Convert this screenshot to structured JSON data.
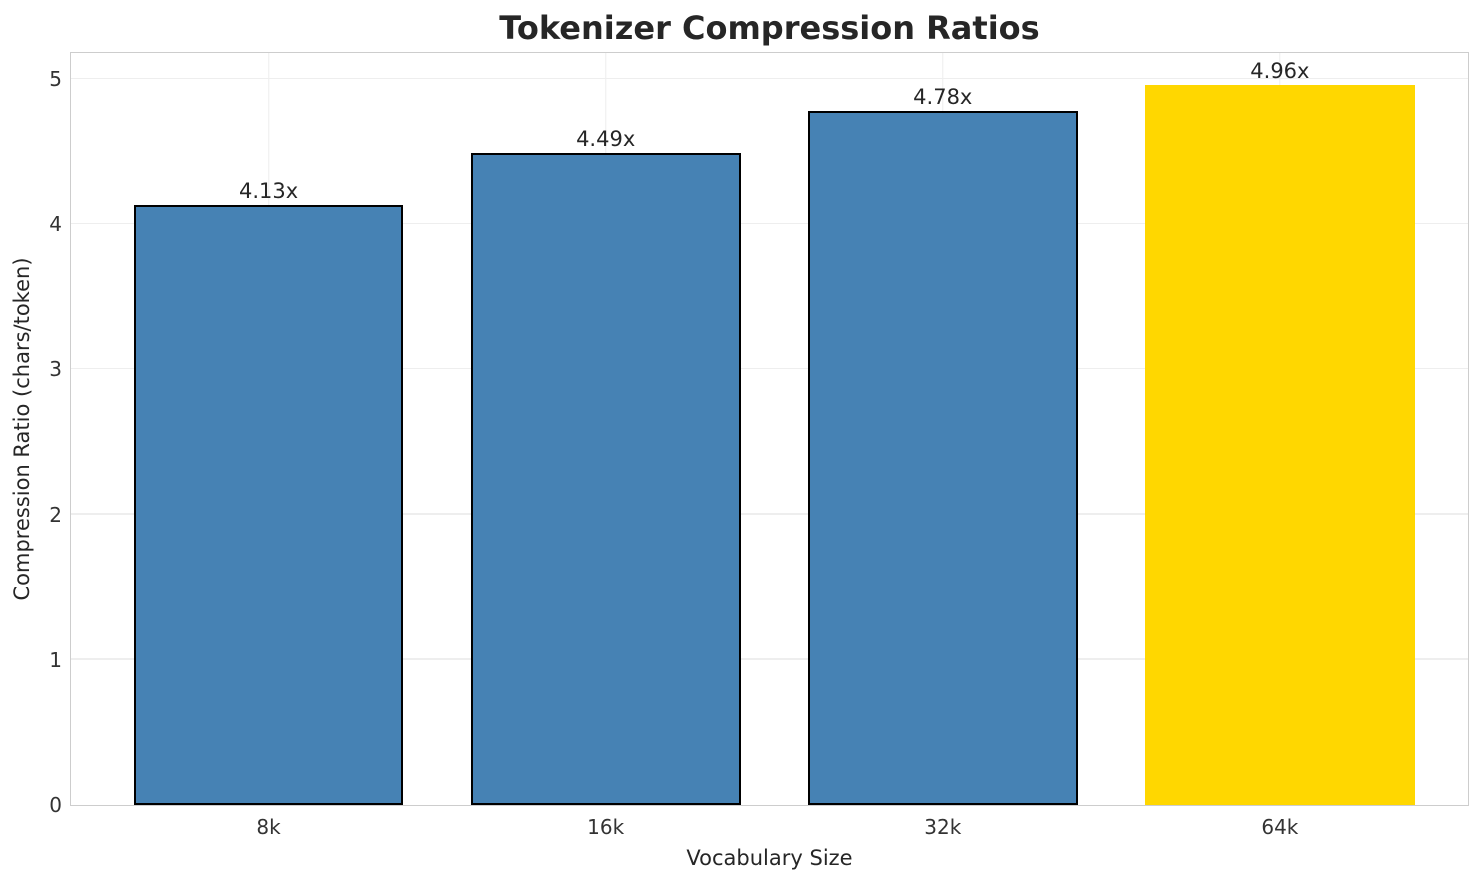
{
  "chart_data": {
    "type": "bar",
    "title": "Tokenizer Compression Ratios",
    "xlabel": "Vocabulary Size",
    "ylabel": "Compression Ratio (chars/token)",
    "categories": [
      "8k",
      "16k",
      "32k",
      "64k"
    ],
    "values": [
      4.13,
      4.49,
      4.78,
      4.96
    ],
    "value_labels": [
      "4.13x",
      "4.49x",
      "4.78x",
      "4.96x"
    ],
    "bar_colors": [
      "#4682B4",
      "#4682B4",
      "#4682B4",
      "#FFD700"
    ],
    "bar_edge_colors": [
      "#000000",
      "#000000",
      "#000000",
      "none"
    ],
    "bar_edge_width": 2,
    "bar_width": 0.8,
    "xlim": [
      -0.586,
      3.558
    ],
    "ylim": [
      0,
      5.18
    ],
    "yticks": [
      0,
      1,
      2,
      3,
      4,
      5
    ],
    "grid": "both",
    "legend": "none",
    "colors": {
      "default_bar": "#4682B4",
      "highlight_bar": "#FFD700",
      "grid_line": "#eeeeee",
      "spine": "#cdcdcd",
      "text": "#262626",
      "tick_text": "#333333"
    }
  }
}
